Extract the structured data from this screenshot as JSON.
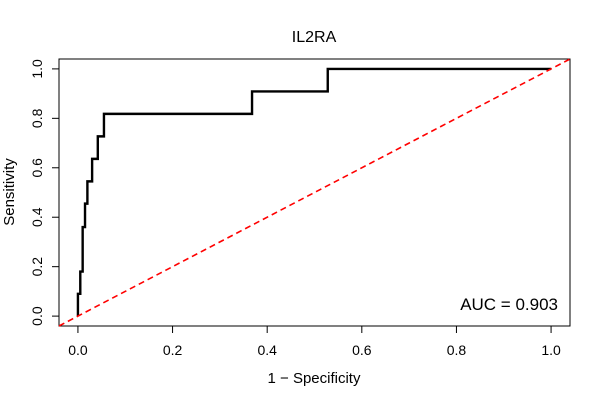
{
  "chart_data": {
    "type": "line",
    "title": "IL2RA",
    "xlabel": "1 − Specificity",
    "ylabel": "Sensitivity",
    "xlim": [
      -0.04,
      1.04
    ],
    "ylim": [
      -0.04,
      1.04
    ],
    "x_ticks": [
      0.0,
      0.2,
      0.4,
      0.6,
      0.8,
      1.0
    ],
    "x_tick_labels": [
      "0.0",
      "0.2",
      "0.4",
      "0.6",
      "0.8",
      "1.0"
    ],
    "y_ticks": [
      0.0,
      0.2,
      0.4,
      0.6,
      0.8,
      1.0
    ],
    "y_tick_labels": [
      "0.0",
      "0.2",
      "0.4",
      "0.6",
      "0.8",
      "1.0"
    ],
    "annotation": "AUC = 0.903",
    "grid": false,
    "series": [
      {
        "name": "ROC",
        "color": "#000000",
        "style": "solid",
        "x": [
          0.0,
          0.0,
          0.005,
          0.005,
          0.01,
          0.01,
          0.015,
          0.015,
          0.02,
          0.02,
          0.03,
          0.03,
          0.042,
          0.042,
          0.055,
          0.055,
          0.368,
          0.368,
          0.528,
          0.528,
          1.0
        ],
        "y": [
          0.0,
          0.09,
          0.09,
          0.18,
          0.18,
          0.36,
          0.36,
          0.455,
          0.455,
          0.545,
          0.545,
          0.636,
          0.636,
          0.727,
          0.727,
          0.818,
          0.818,
          0.909,
          0.909,
          1.0,
          1.0
        ]
      },
      {
        "name": "chance",
        "color": "#ff0000",
        "style": "dashed",
        "x": [
          -0.04,
          1.04
        ],
        "y": [
          -0.04,
          1.04
        ]
      }
    ]
  }
}
